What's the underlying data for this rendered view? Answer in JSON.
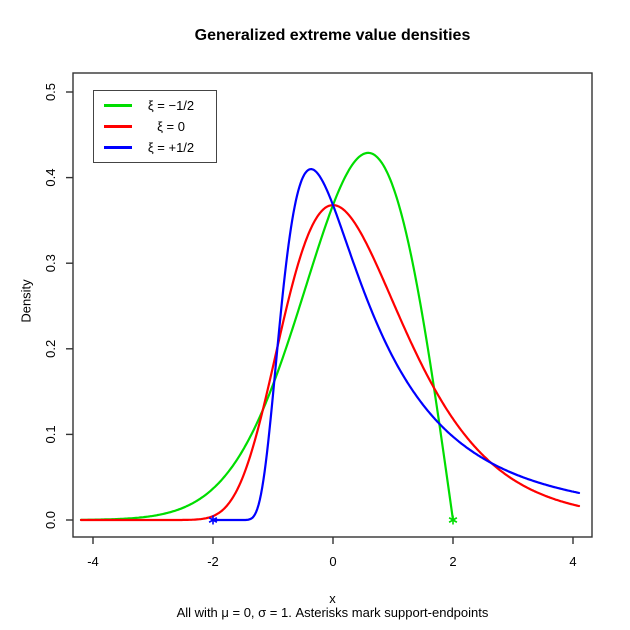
{
  "chart_data": {
    "type": "line",
    "title": "Generalized extreme value densities",
    "xlabel": "x",
    "ylabel": "Density",
    "caption": "All with μ = 0, σ = 1. Asterisks mark support-endpoints",
    "xlim": [
      -4,
      4
    ],
    "ylim": [
      0,
      0.5
    ],
    "x_ticks": [
      -4,
      -2,
      0,
      2,
      4
    ],
    "y_ticks": [
      0,
      0.1,
      0.2,
      0.3,
      0.4,
      0.5
    ],
    "grid": false,
    "axis_color": "#333333",
    "text_color": "#000000",
    "legend_position": "top-left",
    "series": [
      {
        "id": "xi-neg-half",
        "name": "ξ = −1/2",
        "color": "#00dd00",
        "xi": -0.5,
        "mu": 0,
        "sigma": 1,
        "x_range": [
          -4.2,
          2
        ],
        "support_endpoint": 2,
        "peak": {
          "x": 0.59,
          "y": 0.429
        },
        "sample_points": [
          [
            -4,
            0.0004
          ],
          [
            -3,
            0.0048
          ],
          [
            -2,
            0.0366
          ],
          [
            -1.5,
            0.0819
          ],
          [
            -1,
            0.1581
          ],
          [
            -0.5,
            0.262
          ],
          [
            0,
            0.3679
          ],
          [
            0.5,
            0.4273
          ],
          [
            0.59,
            0.4289
          ],
          [
            1,
            0.3894
          ],
          [
            1.5,
            0.2349
          ],
          [
            1.75,
            0.1231
          ],
          [
            2,
            0
          ]
        ]
      },
      {
        "id": "xi-zero",
        "name": "ξ = 0",
        "color": "#ff0000",
        "xi": 0,
        "mu": 0,
        "sigma": 1,
        "x_range": [
          -4.2,
          4.1
        ],
        "support_endpoint": null,
        "peak": {
          "x": 0,
          "y": 0.368
        },
        "sample_points": [
          [
            -4,
            0
          ],
          [
            -2,
            0.0046
          ],
          [
            -1.5,
            0.0507
          ],
          [
            -1,
            0.1794
          ],
          [
            -0.5,
            0.317
          ],
          [
            0,
            0.3679
          ],
          [
            0.5,
            0.3307
          ],
          [
            1,
            0.2546
          ],
          [
            1.5,
            0.1785
          ],
          [
            2,
            0.1182
          ],
          [
            2.5,
            0.0756
          ],
          [
            3,
            0.0474
          ],
          [
            3.5,
            0.0293
          ],
          [
            4,
            0.018
          ]
        ]
      },
      {
        "id": "xi-pos-half",
        "name": "ξ = +1/2",
        "color": "#0000ff",
        "xi": 0.5,
        "mu": 0,
        "sigma": 1,
        "x_range": [
          -2,
          4.1
        ],
        "support_endpoint": -2,
        "peak": {
          "x": -0.37,
          "y": 0.41
        },
        "sample_points": [
          [
            -2,
            0
          ],
          [
            -1.5,
            0
          ],
          [
            -1.2,
            0.0302
          ],
          [
            -1,
            0.1465
          ],
          [
            -0.8,
            0.2879
          ],
          [
            -0.6,
            0.3788
          ],
          [
            -0.37,
            0.4099
          ],
          [
            -0.2,
            0.3991
          ],
          [
            0,
            0.3679
          ],
          [
            0.5,
            0.27
          ],
          [
            1,
            0.19
          ],
          [
            1.5,
            0.1346
          ],
          [
            2,
            0.0974
          ],
          [
            2.5,
            0.072
          ],
          [
            3,
            0.0545
          ],
          [
            3.5,
            0.0421
          ],
          [
            4,
            0.0331
          ]
        ]
      }
    ],
    "markers": [
      {
        "x": -2,
        "y": 0,
        "color": "#0000ff",
        "symbol": "asterisk",
        "meaning": "lower support endpoint of ξ = +1/2"
      },
      {
        "x": 2,
        "y": 0,
        "color": "#00dd00",
        "symbol": "asterisk",
        "meaning": "upper support endpoint of ξ = −1/2"
      }
    ]
  }
}
